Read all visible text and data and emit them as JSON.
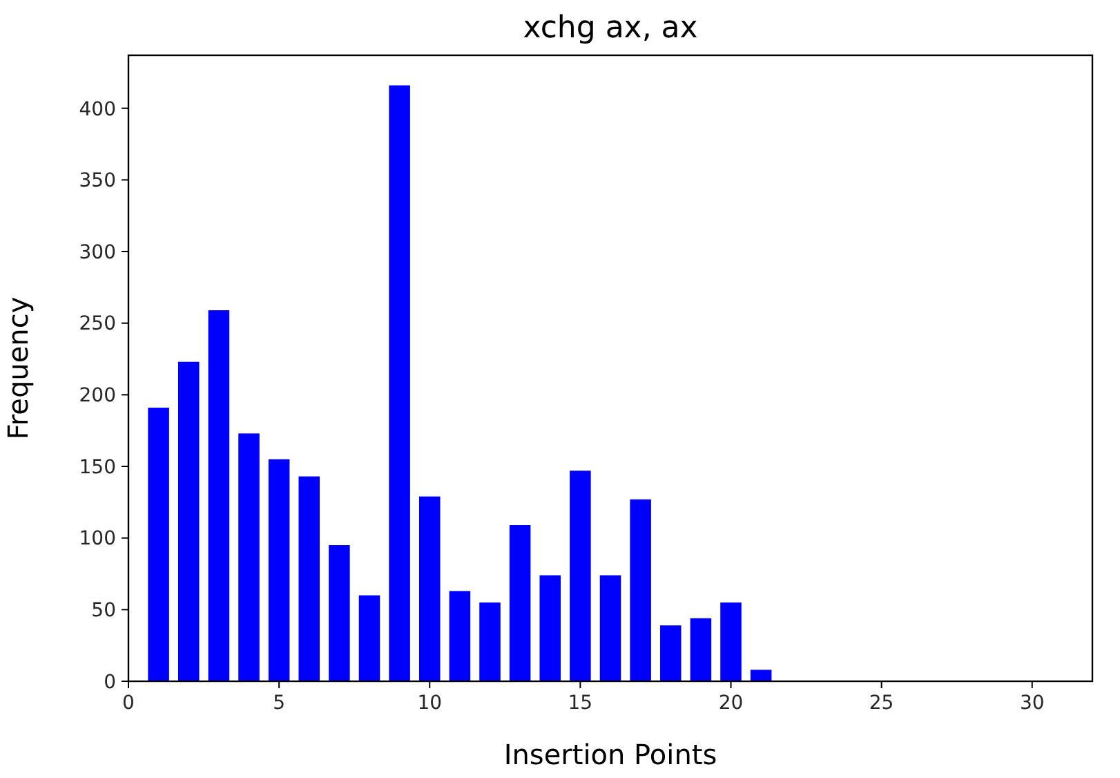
{
  "chart_data": {
    "type": "bar",
    "title": "xchg ax, ax",
    "xlabel": "Insertion Points",
    "ylabel": "Frequency",
    "x": [
      1,
      2,
      3,
      4,
      5,
      6,
      7,
      8,
      9,
      10,
      11,
      12,
      13,
      14,
      15,
      16,
      17,
      18,
      19,
      20,
      21
    ],
    "values": [
      191,
      223,
      259,
      173,
      155,
      143,
      95,
      60,
      416,
      129,
      63,
      55,
      109,
      74,
      147,
      74,
      127,
      39,
      44,
      55,
      8
    ],
    "color": "#0000ff",
    "xlim": [
      0,
      32
    ],
    "xticks": [
      0,
      5,
      10,
      15,
      20,
      25,
      30
    ],
    "ylim": [
      0,
      437
    ],
    "yticks": [
      0,
      50,
      100,
      150,
      200,
      250,
      300,
      350,
      400
    ],
    "grid": false
  }
}
